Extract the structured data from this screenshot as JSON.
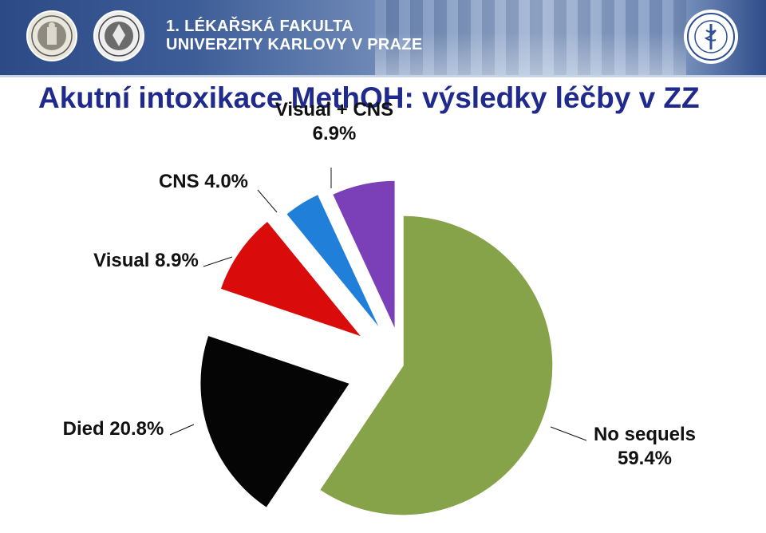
{
  "header": {
    "faculty_line1": "1. LÉKAŘSKÁ FAKULTA",
    "faculty_line2": "UNIVERZITY KARLOVY V PRAZE",
    "logos": [
      "charles-university-seal",
      "first-faculty-seal",
      "general-university-hospital-logo"
    ],
    "colors": {
      "banner": "#34528e",
      "title": "#1f2a8c"
    }
  },
  "title": "Akutní intoxikace MethOH: výsledky léčby v ZZ",
  "chart_data": {
    "type": "pie",
    "title": "",
    "exploded": true,
    "slices": [
      {
        "label": "No sequels",
        "value": 59.4,
        "color": "#86a34a",
        "label_text": [
          "No sequels",
          "59.4%"
        ]
      },
      {
        "label": "Died",
        "value": 20.8,
        "color": "#050505",
        "label_text": [
          "Died 20.8%"
        ]
      },
      {
        "label": "Visual",
        "value": 8.9,
        "color": "#d90b0b",
        "label_text": [
          "Visual 8.9%"
        ]
      },
      {
        "label": "CNS",
        "value": 4.0,
        "color": "#1f7fd9",
        "label_text": [
          "CNS 4.0%"
        ]
      },
      {
        "label": "Visual + CNS",
        "value": 6.9,
        "color": "#7b3fb8",
        "label_text": [
          "Visual + CNS",
          "6.9%"
        ]
      }
    ]
  }
}
